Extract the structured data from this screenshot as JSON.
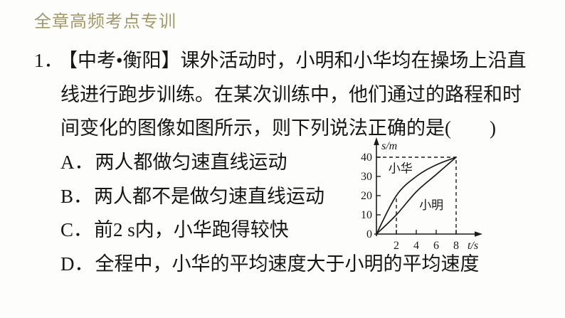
{
  "header": {
    "title": "全章高频考点专训",
    "color": "#a39968"
  },
  "question": {
    "number": "1．",
    "line1": "【中考•衡阳】课外活动时，小明和小华均在操场上沿直",
    "line2": "线进行跑步训练。在某次训练中，他们通过的路程和时",
    "line3": "间变化的图像如图所示，则下列说法正确的是(　　)"
  },
  "options": [
    {
      "label": "A．",
      "text": "两人都做匀速直线运动"
    },
    {
      "label": "B．",
      "text": "两人都不是做匀速直线运动"
    },
    {
      "label": "C．",
      "text": "前2 s内，小华跑得较快"
    },
    {
      "label": "D．",
      "text": "全程中，小华的平均速度大于小明的平均速度"
    }
  ],
  "chart_data": {
    "type": "line",
    "title": "",
    "xlabel": "t/s",
    "ylabel": "s/m",
    "xlim": [
      0,
      9.5
    ],
    "ylim": [
      0,
      45
    ],
    "x_ticks": [
      2,
      4,
      6,
      8
    ],
    "y_ticks": [
      0,
      10,
      20,
      30,
      40
    ],
    "grid": false,
    "legend_position": "inline-labels",
    "series": [
      {
        "name": "小华",
        "x": [
          0,
          2,
          4,
          6,
          8
        ],
        "y": [
          0,
          20,
          30,
          36,
          40
        ],
        "shape": "concave-down curve",
        "label_pos": {
          "x": 1.2,
          "y": 32
        }
      },
      {
        "name": "小明",
        "x": [
          0,
          2,
          4,
          6,
          8
        ],
        "y": [
          0,
          10,
          22,
          31,
          40
        ],
        "shape": "gentle curve",
        "label_pos": {
          "x": 4.3,
          "y": 13
        }
      }
    ],
    "guides": [
      {
        "x1": 0,
        "y1": 40,
        "x2": 8,
        "y2": 40,
        "style": "dashed"
      },
      {
        "x1": 8,
        "y1": 0,
        "x2": 8,
        "y2": 40,
        "style": "dashed"
      },
      {
        "x1": 2,
        "y1": 0,
        "x2": 2,
        "y2": 20,
        "style": "dashed"
      }
    ]
  }
}
